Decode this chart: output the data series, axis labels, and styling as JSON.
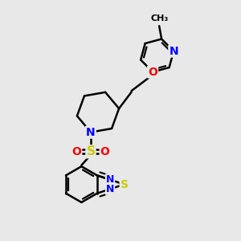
{
  "bg_color": "#e8e8e8",
  "bond_color": "#000000",
  "bond_width": 1.8,
  "atom_colors": {
    "N": "#0000ff",
    "O": "#ff0000",
    "S": "#cccc00",
    "C": "#000000"
  },
  "font_size": 9,
  "fig_size": [
    3.0,
    3.0
  ],
  "dpi": 100
}
